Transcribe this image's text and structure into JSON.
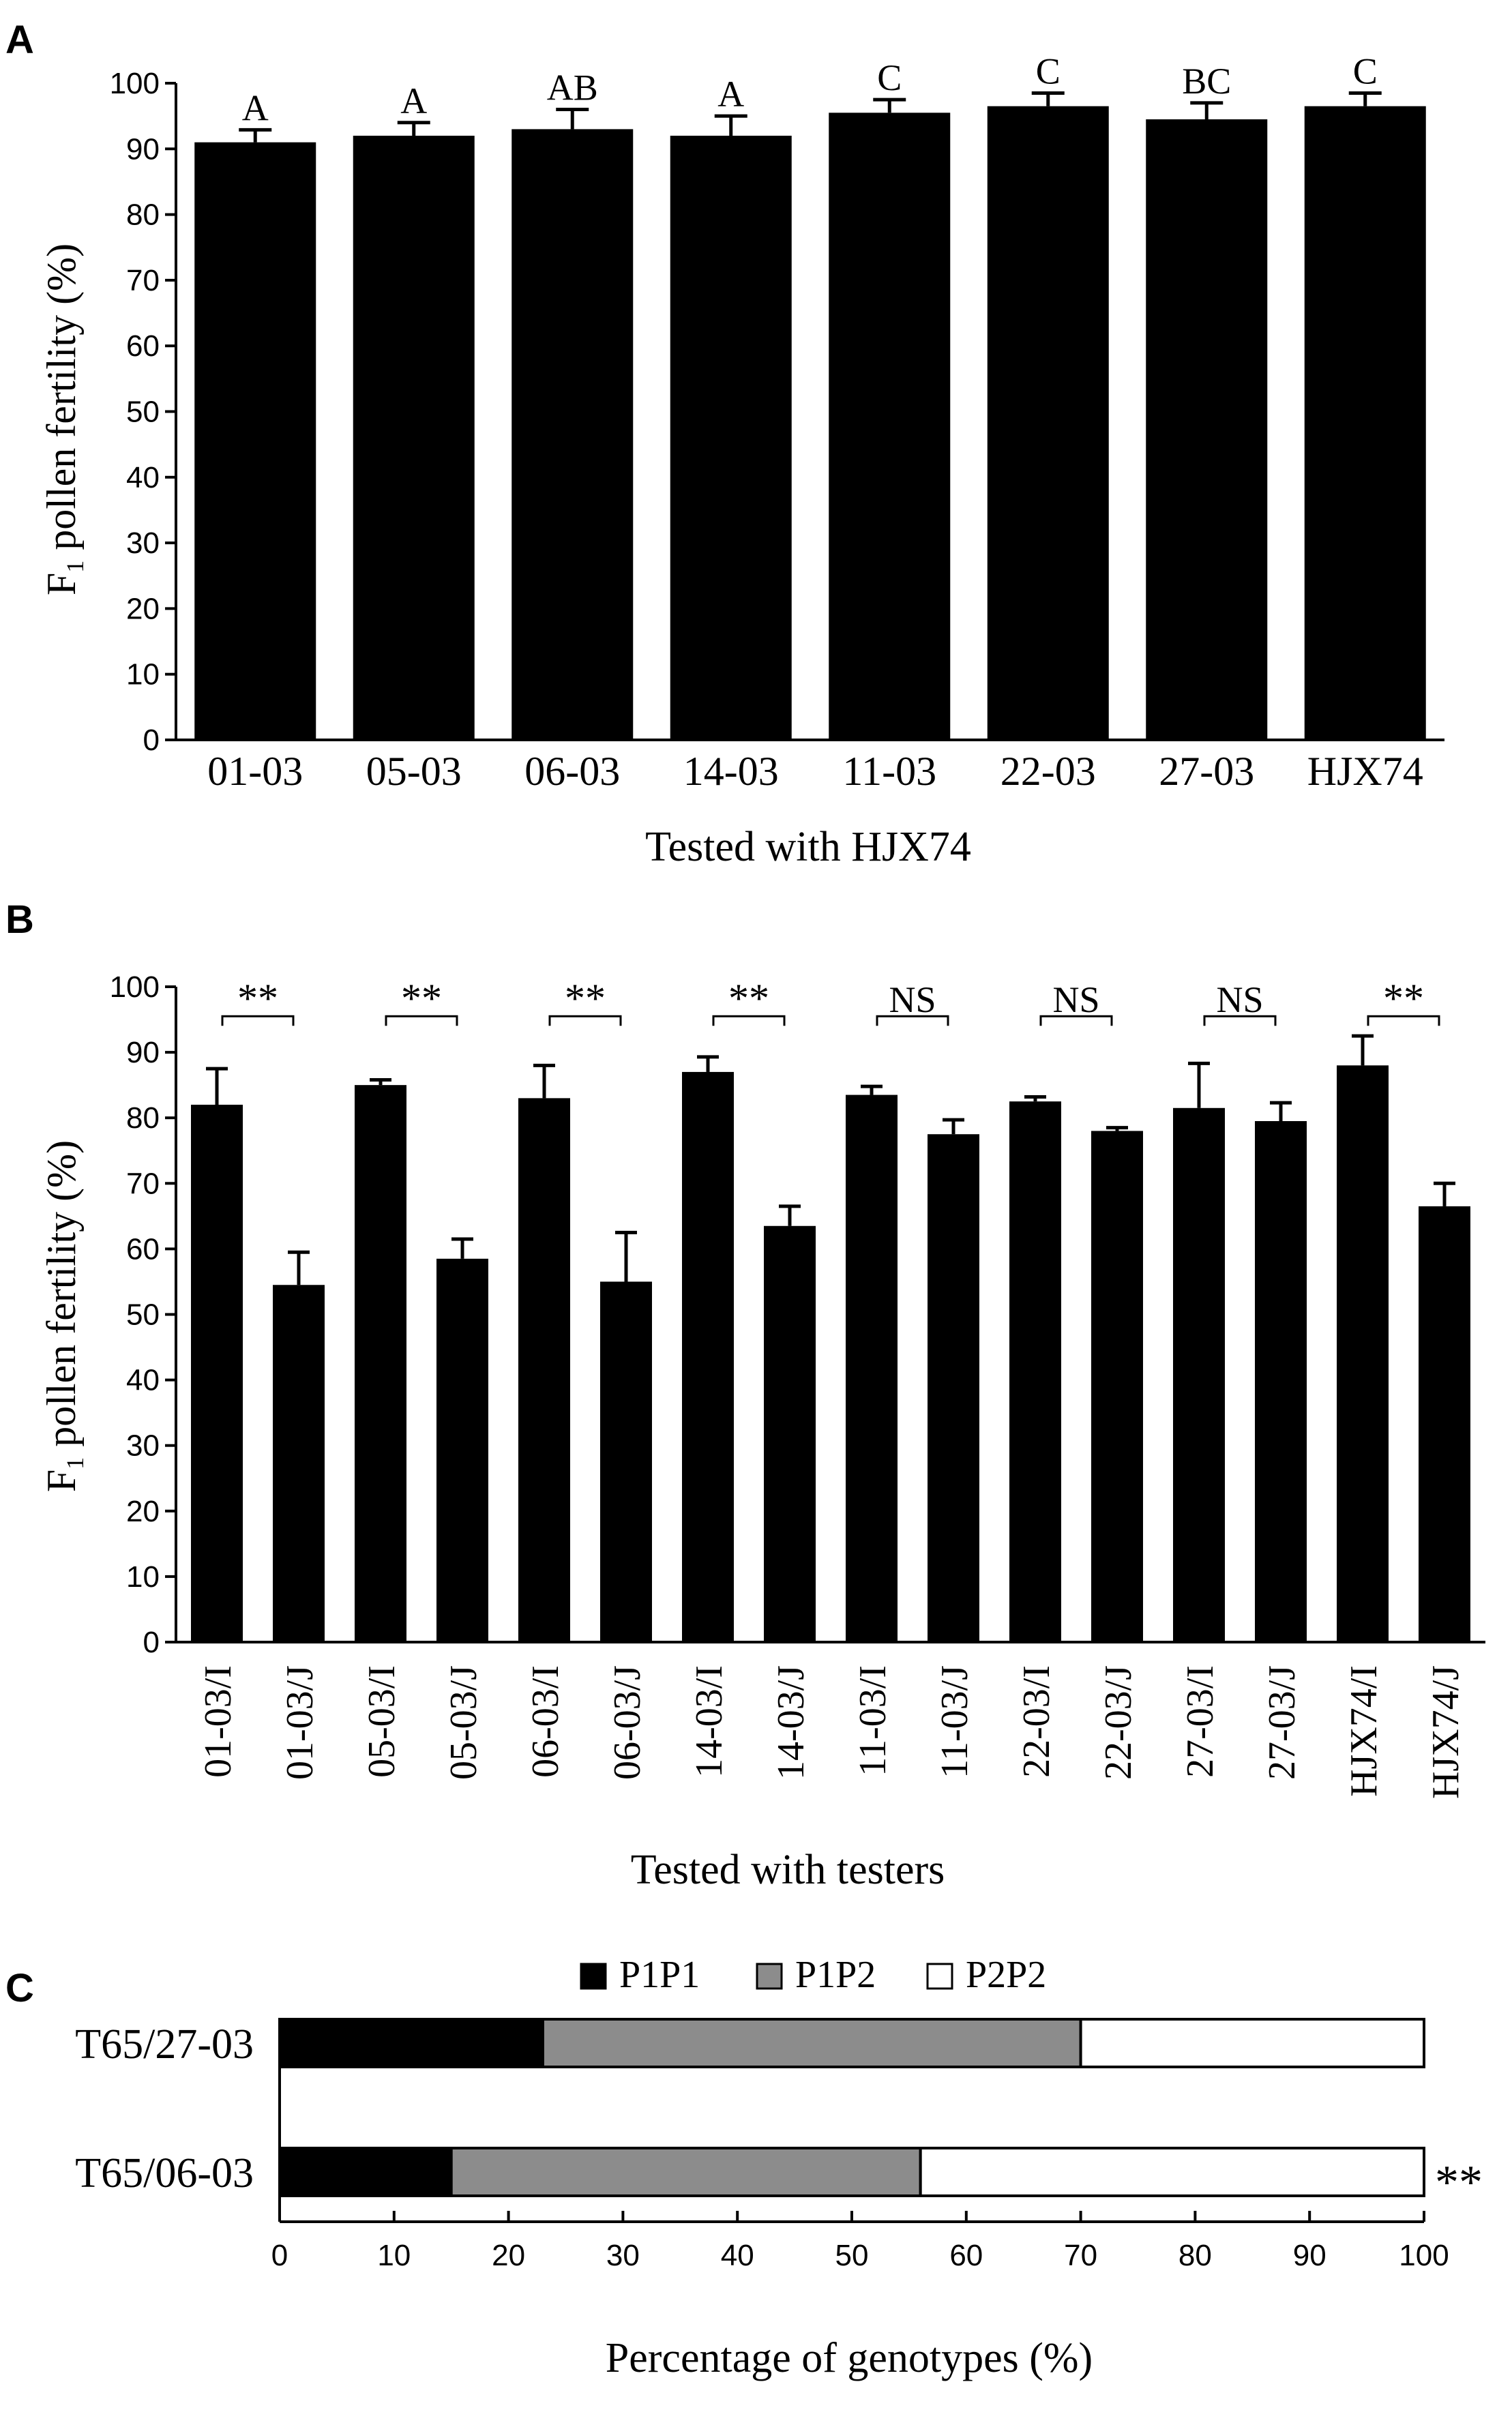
{
  "chart_data": [
    {
      "panel": "A",
      "type": "bar",
      "categories": [
        "01-03",
        "05-03",
        "06-03",
        "14-03",
        "11-03",
        "22-03",
        "27-03",
        "HJX74"
      ],
      "values": [
        91,
        92,
        93,
        92,
        95.5,
        96.5,
        94.5,
        96.5
      ],
      "errors": [
        1.9,
        2,
        3,
        3,
        2,
        2,
        2.5,
        2
      ],
      "letters": [
        "A",
        "A",
        "AB",
        "A",
        "C",
        "C",
        "BC",
        "C"
      ],
      "ylabel_main": "F",
      "ylabel_sub": "1",
      "ylabel_rest": " pollen fertility (%)",
      "xlabel": "Tested with HJX74",
      "ylim": [
        0,
        100
      ],
      "yticks": [
        0,
        10,
        20,
        30,
        40,
        50,
        60,
        70,
        80,
        90,
        100
      ],
      "bar_color": "#000000"
    },
    {
      "panel": "B",
      "type": "bar",
      "categories": [
        "01-03/I",
        "01-03/J",
        "05-03/I",
        "05-03/J",
        "06-03/I",
        "06-03/J",
        "14-03/I",
        "14-03/J",
        "11-03/I",
        "11-03/J",
        "22-03/I",
        "22-03/J",
        "27-03/I",
        "27-03/J",
        "HJX74/I",
        "HJX74/J"
      ],
      "values": [
        82,
        54.5,
        85,
        58.5,
        83,
        55,
        87,
        63.5,
        83.5,
        77.5,
        82.5,
        78,
        81.5,
        79.5,
        88,
        66.5
      ],
      "errors": [
        5.5,
        5,
        0.8,
        3,
        5,
        7.5,
        2.3,
        3,
        1.3,
        2.2,
        0.7,
        0.5,
        6.8,
        2.8,
        4.5,
        3.5
      ],
      "significance": [
        "**",
        "**",
        "**",
        "**",
        "NS",
        "NS",
        "NS",
        "**"
      ],
      "ylabel_main": "F",
      "ylabel_sub": "1",
      "ylabel_rest": " pollen fertility (%)",
      "xlabel": "Tested with testers",
      "ylim": [
        0,
        100
      ],
      "yticks": [
        0,
        10,
        20,
        30,
        40,
        50,
        60,
        70,
        80,
        90,
        100
      ],
      "bar_color": "#000000"
    },
    {
      "panel": "C",
      "type": "bar",
      "orientation": "horizontal",
      "stacked": true,
      "categories": [
        "T65/27-03",
        "T65/06-03"
      ],
      "series": [
        {
          "name": "P1P1",
          "values": [
            23,
            15
          ],
          "color": "#000000"
        },
        {
          "name": "P1P2",
          "values": [
            47,
            41
          ],
          "color": "#8c8c8c"
        },
        {
          "name": "P2P2",
          "values": [
            30,
            44
          ],
          "color": "#ffffff"
        }
      ],
      "row_marks": [
        "",
        "**"
      ],
      "xlabel": "Percentage of genotypes (%)",
      "xlim": [
        0,
        100
      ],
      "xticks": [
        0,
        10,
        20,
        30,
        40,
        50,
        60,
        70,
        80,
        90,
        100
      ],
      "legend_position": "top-center"
    }
  ],
  "panels": {
    "a_label": "A",
    "b_label": "B",
    "c_label": "C"
  }
}
